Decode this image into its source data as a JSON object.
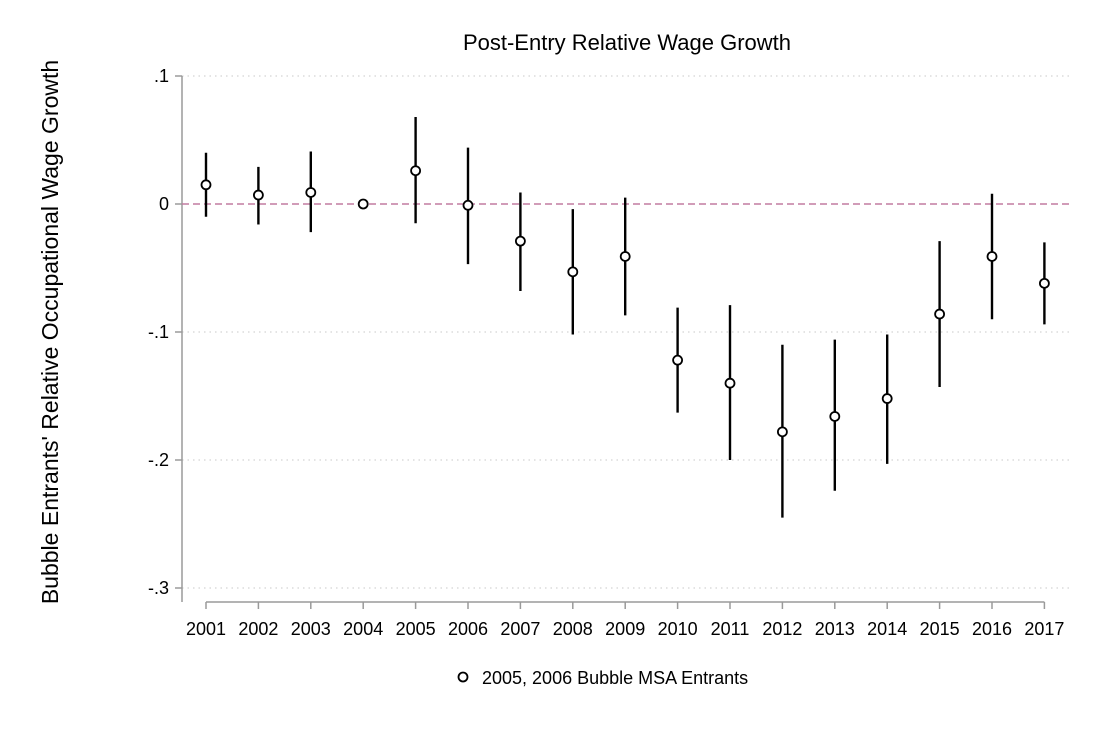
{
  "chart_data": {
    "type": "scatter",
    "title": "Post-Entry Relative Wage Growth",
    "xlabel": "",
    "ylabel": "Bubble Entrants' Relative Occupational Wage Growth",
    "ylim": [
      -0.3,
      0.1
    ],
    "yticks": [
      {
        "value": 0.1,
        "label": ".1"
      },
      {
        "value": 0.0,
        "label": "0"
      },
      {
        "value": -0.1,
        "label": "-.1"
      },
      {
        "value": -0.2,
        "label": "-.2"
      },
      {
        "value": -0.3,
        "label": "-.3"
      }
    ],
    "x": [
      "2001",
      "2002",
      "2003",
      "2004",
      "2005",
      "2006",
      "2007",
      "2008",
      "2009",
      "2010",
      "2011",
      "2012",
      "2013",
      "2014",
      "2015",
      "2016",
      "2017"
    ],
    "series": [
      {
        "name": "2005, 2006 Bubble MSA Entrants",
        "values": [
          0.015,
          0.007,
          0.009,
          0.0,
          0.026,
          -0.001,
          -0.029,
          -0.053,
          -0.041,
          -0.122,
          -0.14,
          -0.178,
          -0.166,
          -0.152,
          -0.086,
          -0.041,
          -0.062
        ],
        "ci_low": [
          -0.01,
          -0.016,
          -0.022,
          0.0,
          -0.015,
          -0.047,
          -0.068,
          -0.102,
          -0.087,
          -0.163,
          -0.2,
          -0.245,
          -0.224,
          -0.203,
          -0.143,
          -0.09,
          -0.094
        ],
        "ci_high": [
          0.04,
          0.029,
          0.041,
          0.0,
          0.068,
          0.044,
          0.009,
          -0.004,
          0.005,
          -0.081,
          -0.079,
          -0.11,
          -0.106,
          -0.102,
          -0.029,
          0.008,
          -0.03
        ]
      }
    ],
    "reference_line": 0,
    "grid": true,
    "legend_position": "bottom",
    "colors": {
      "marker": "#000000",
      "reference_line": "#c27ba0",
      "grid": "#c8c8c8",
      "axis": "#9a9a9a"
    }
  }
}
